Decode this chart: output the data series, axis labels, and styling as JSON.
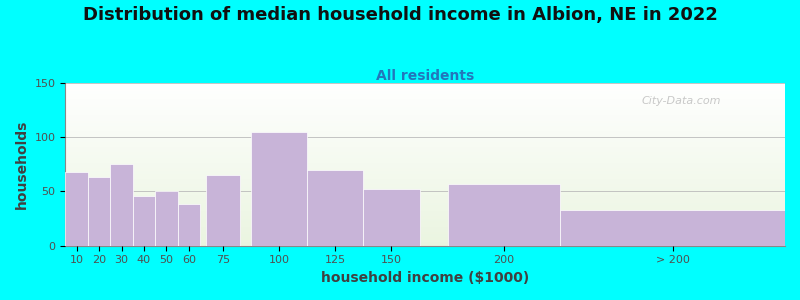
{
  "title": "Distribution of median household income in Albion, NE in 2022",
  "subtitle": "All residents",
  "xlabel": "household income ($1000)",
  "ylabel": "households",
  "title_fontsize": 13,
  "subtitle_fontsize": 10,
  "label_fontsize": 10,
  "background_color": "#00FFFF",
  "bar_color": "#c8b4d8",
  "bar_edgecolor": "#ffffff",
  "categories": [
    "10",
    "20",
    "30",
    "40",
    "50",
    "60",
    "75",
    "100",
    "125",
    "150",
    "200",
    "> 200"
  ],
  "values": [
    68,
    63,
    75,
    46,
    50,
    38,
    65,
    105,
    70,
    52,
    57,
    33
  ],
  "left_edges": [
    5,
    15,
    25,
    35,
    45,
    55,
    67.5,
    87.5,
    112.5,
    137.5,
    175,
    225
  ],
  "widths": [
    10,
    10,
    10,
    10,
    10,
    10,
    15,
    25,
    25,
    25,
    50,
    100
  ],
  "tick_positions": [
    10,
    20,
    30,
    40,
    50,
    60,
    75,
    100,
    125,
    150,
    200,
    275
  ],
  "tick_labels": [
    "10",
    "20",
    "30",
    "40",
    "50",
    "60",
    "75",
    "100",
    "125",
    "150",
    "200",
    "> 200"
  ],
  "xlim": [
    5,
    325
  ],
  "ylim": [
    0,
    150
  ],
  "yticks": [
    0,
    50,
    100,
    150
  ],
  "watermark": "City-Data.com"
}
